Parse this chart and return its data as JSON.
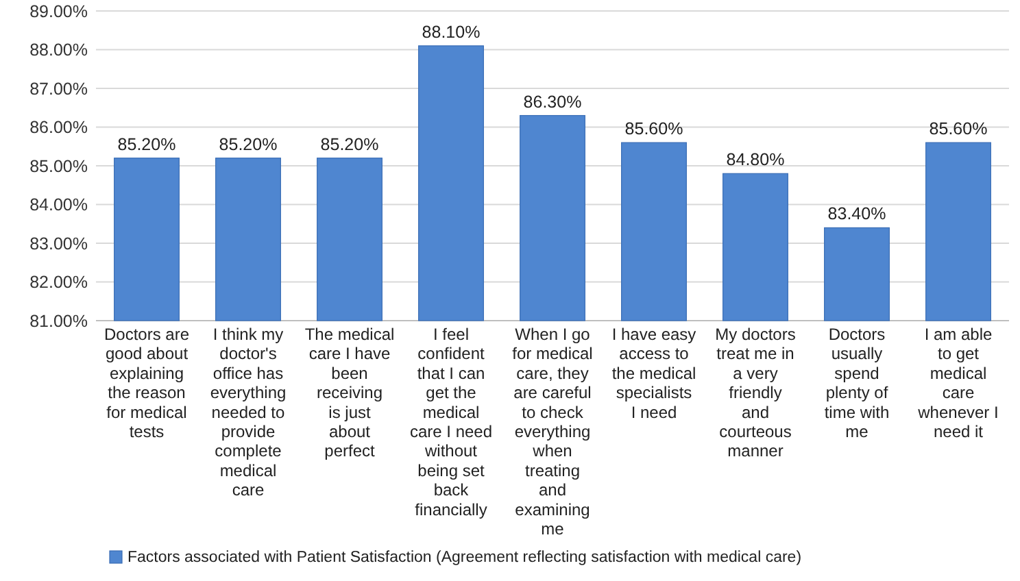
{
  "chart_data": {
    "type": "bar",
    "categories": [
      "Doctors are good about explaining the reason for medical tests",
      "I think my doctor's office has everything needed to provide complete medical care",
      "The medical care I have been receiving is just about perfect",
      "I feel confident that I can get the medical care I need without being set back financially",
      "When I go for medical care, they are careful to check everything when treating and examining me",
      "I have easy access to the medical specialists I need",
      "My doctors treat me in a very friendly and courteous manner",
      "Doctors usually spend plenty of time with me",
      "I am able to get medical care whenever I need it"
    ],
    "series": [
      {
        "name": "Factors associated with Patient Satisfaction (Agreement reflecting satisfaction with medical care)",
        "color": "#4f86d0",
        "values": [
          85.2,
          85.2,
          85.2,
          88.1,
          86.3,
          85.6,
          84.8,
          83.4,
          85.6
        ],
        "value_labels": [
          "85.20%",
          "85.20%",
          "85.20%",
          "88.10%",
          "86.30%",
          "85.60%",
          "84.80%",
          "83.40%",
          "85.60%"
        ]
      }
    ],
    "ylim": [
      81,
      89
    ],
    "yticks": [
      {
        "value": 81,
        "label": "81.00%"
      },
      {
        "value": 82,
        "label": "82.00%"
      },
      {
        "value": 83,
        "label": "83.00%"
      },
      {
        "value": 84,
        "label": "84.00%"
      },
      {
        "value": 85,
        "label": "85.00%"
      },
      {
        "value": 86,
        "label": "86.00%"
      },
      {
        "value": 87,
        "label": "87.00%"
      },
      {
        "value": 88,
        "label": "88.00%"
      },
      {
        "value": 89,
        "label": "89.00%"
      }
    ],
    "grid": true,
    "legend": "bottom"
  }
}
